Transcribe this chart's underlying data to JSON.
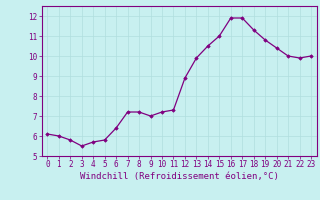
{
  "x": [
    0,
    1,
    2,
    3,
    4,
    5,
    6,
    7,
    8,
    9,
    10,
    11,
    12,
    13,
    14,
    15,
    16,
    17,
    18,
    19,
    20,
    21,
    22,
    23
  ],
  "y": [
    6.1,
    6.0,
    5.8,
    5.5,
    5.7,
    5.8,
    6.4,
    7.2,
    7.2,
    7.0,
    7.2,
    7.3,
    8.9,
    9.9,
    10.5,
    11.0,
    11.9,
    11.9,
    11.3,
    10.8,
    10.4,
    10.0,
    9.9,
    10.0
  ],
  "line_color": "#800080",
  "marker": "D",
  "marker_size": 1.8,
  "bg_color": "#c8f0f0",
  "grid_color": "#b0dede",
  "xlabel": "Windchill (Refroidissement éolien,°C)",
  "xlim": [
    -0.5,
    23.5
  ],
  "ylim": [
    5.0,
    12.5
  ],
  "yticks": [
    5,
    6,
    7,
    8,
    9,
    10,
    11,
    12
  ],
  "xticks": [
    0,
    1,
    2,
    3,
    4,
    5,
    6,
    7,
    8,
    9,
    10,
    11,
    12,
    13,
    14,
    15,
    16,
    17,
    18,
    19,
    20,
    21,
    22,
    23
  ],
  "tick_label_size": 5.5,
  "xlabel_size": 6.5,
  "spine_color": "#800080"
}
